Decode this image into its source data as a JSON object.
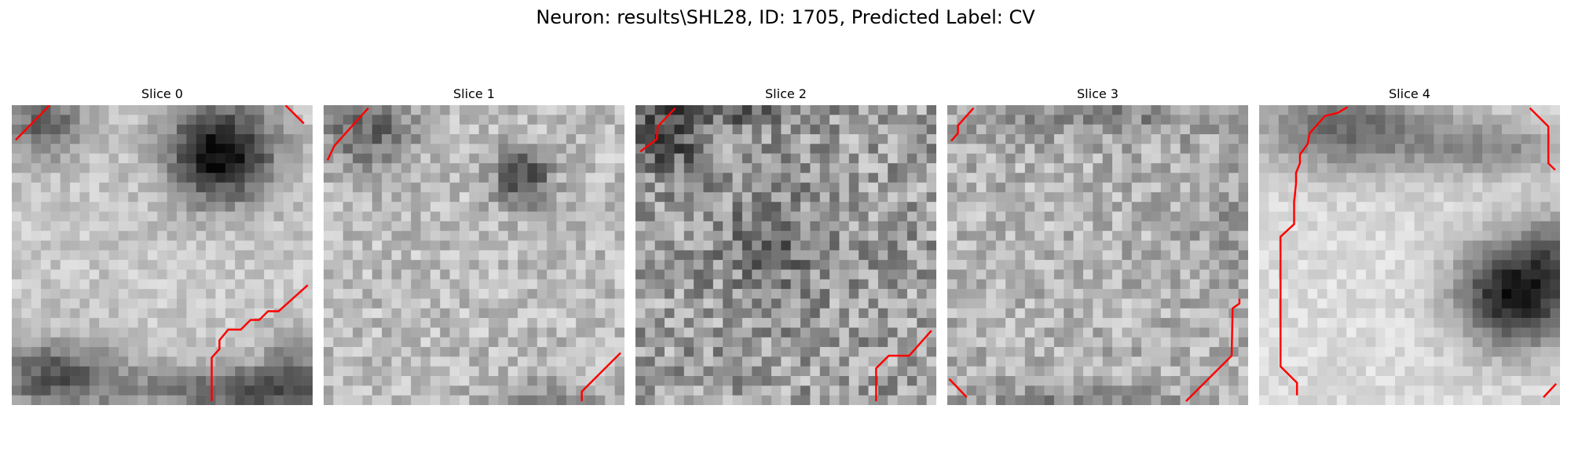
{
  "title": "Neuron: results\\SHL28, ID: 1705, Predicted Label: CV",
  "slices": [
    {
      "label": "Slice 0"
    },
    {
      "label": "Slice 1"
    },
    {
      "label": "Slice 2"
    },
    {
      "label": "Slice 3"
    },
    {
      "label": "Slice 4"
    }
  ],
  "colors": {
    "contour": "#ff0000",
    "background": "#ffffff"
  }
}
